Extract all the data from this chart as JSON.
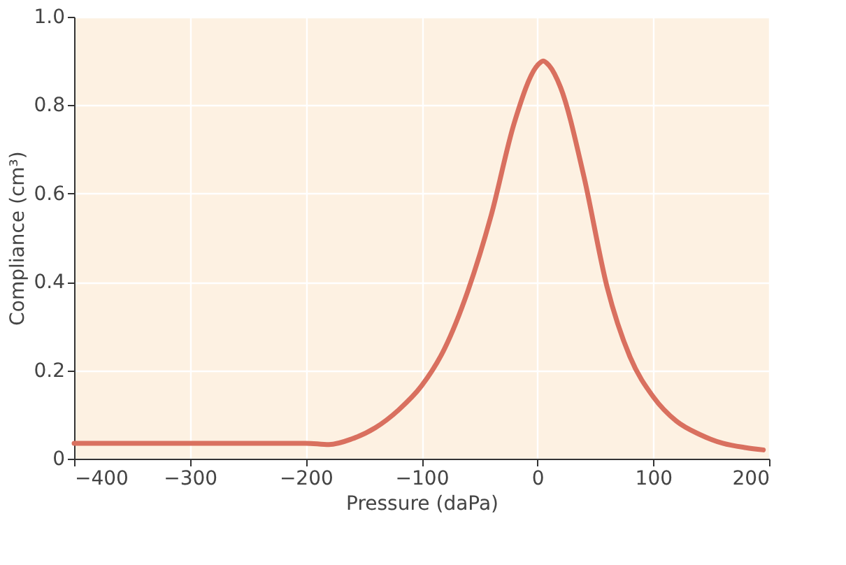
{
  "chart_data": {
    "type": "line",
    "xlabel": "Pressure (daPa)",
    "ylabel": "Compliance (cm³)",
    "x": [
      -400,
      -300,
      -200,
      -180,
      -160,
      -140,
      -120,
      -100,
      -80,
      -60,
      -40,
      -20,
      0,
      5,
      10,
      20,
      40,
      60,
      80,
      100,
      120,
      140,
      160,
      180,
      195
    ],
    "series": [
      {
        "color": "#d9705f",
        "values": [
          0.035,
          0.035,
          0.035,
          0.032,
          0.045,
          0.07,
          0.11,
          0.165,
          0.25,
          0.38,
          0.55,
          0.76,
          0.89,
          0.9,
          0.89,
          0.84,
          0.64,
          0.39,
          0.23,
          0.14,
          0.085,
          0.055,
          0.035,
          0.025,
          0.02
        ]
      }
    ],
    "xlim": [
      -400,
      200
    ],
    "ylim": [
      0,
      1
    ],
    "xticks": [
      {
        "value": -400,
        "label": "−400"
      },
      {
        "value": -300,
        "label": "−300"
      },
      {
        "value": -200,
        "label": "−200"
      },
      {
        "value": -100,
        "label": "−100"
      },
      0,
      100,
      200
    ],
    "yticks": [
      0,
      0.2,
      0.4,
      0.6,
      0.8,
      {
        "value": 1,
        "label": "1.0"
      }
    ],
    "grid": true,
    "marker": "none",
    "line_style": "solid"
  }
}
